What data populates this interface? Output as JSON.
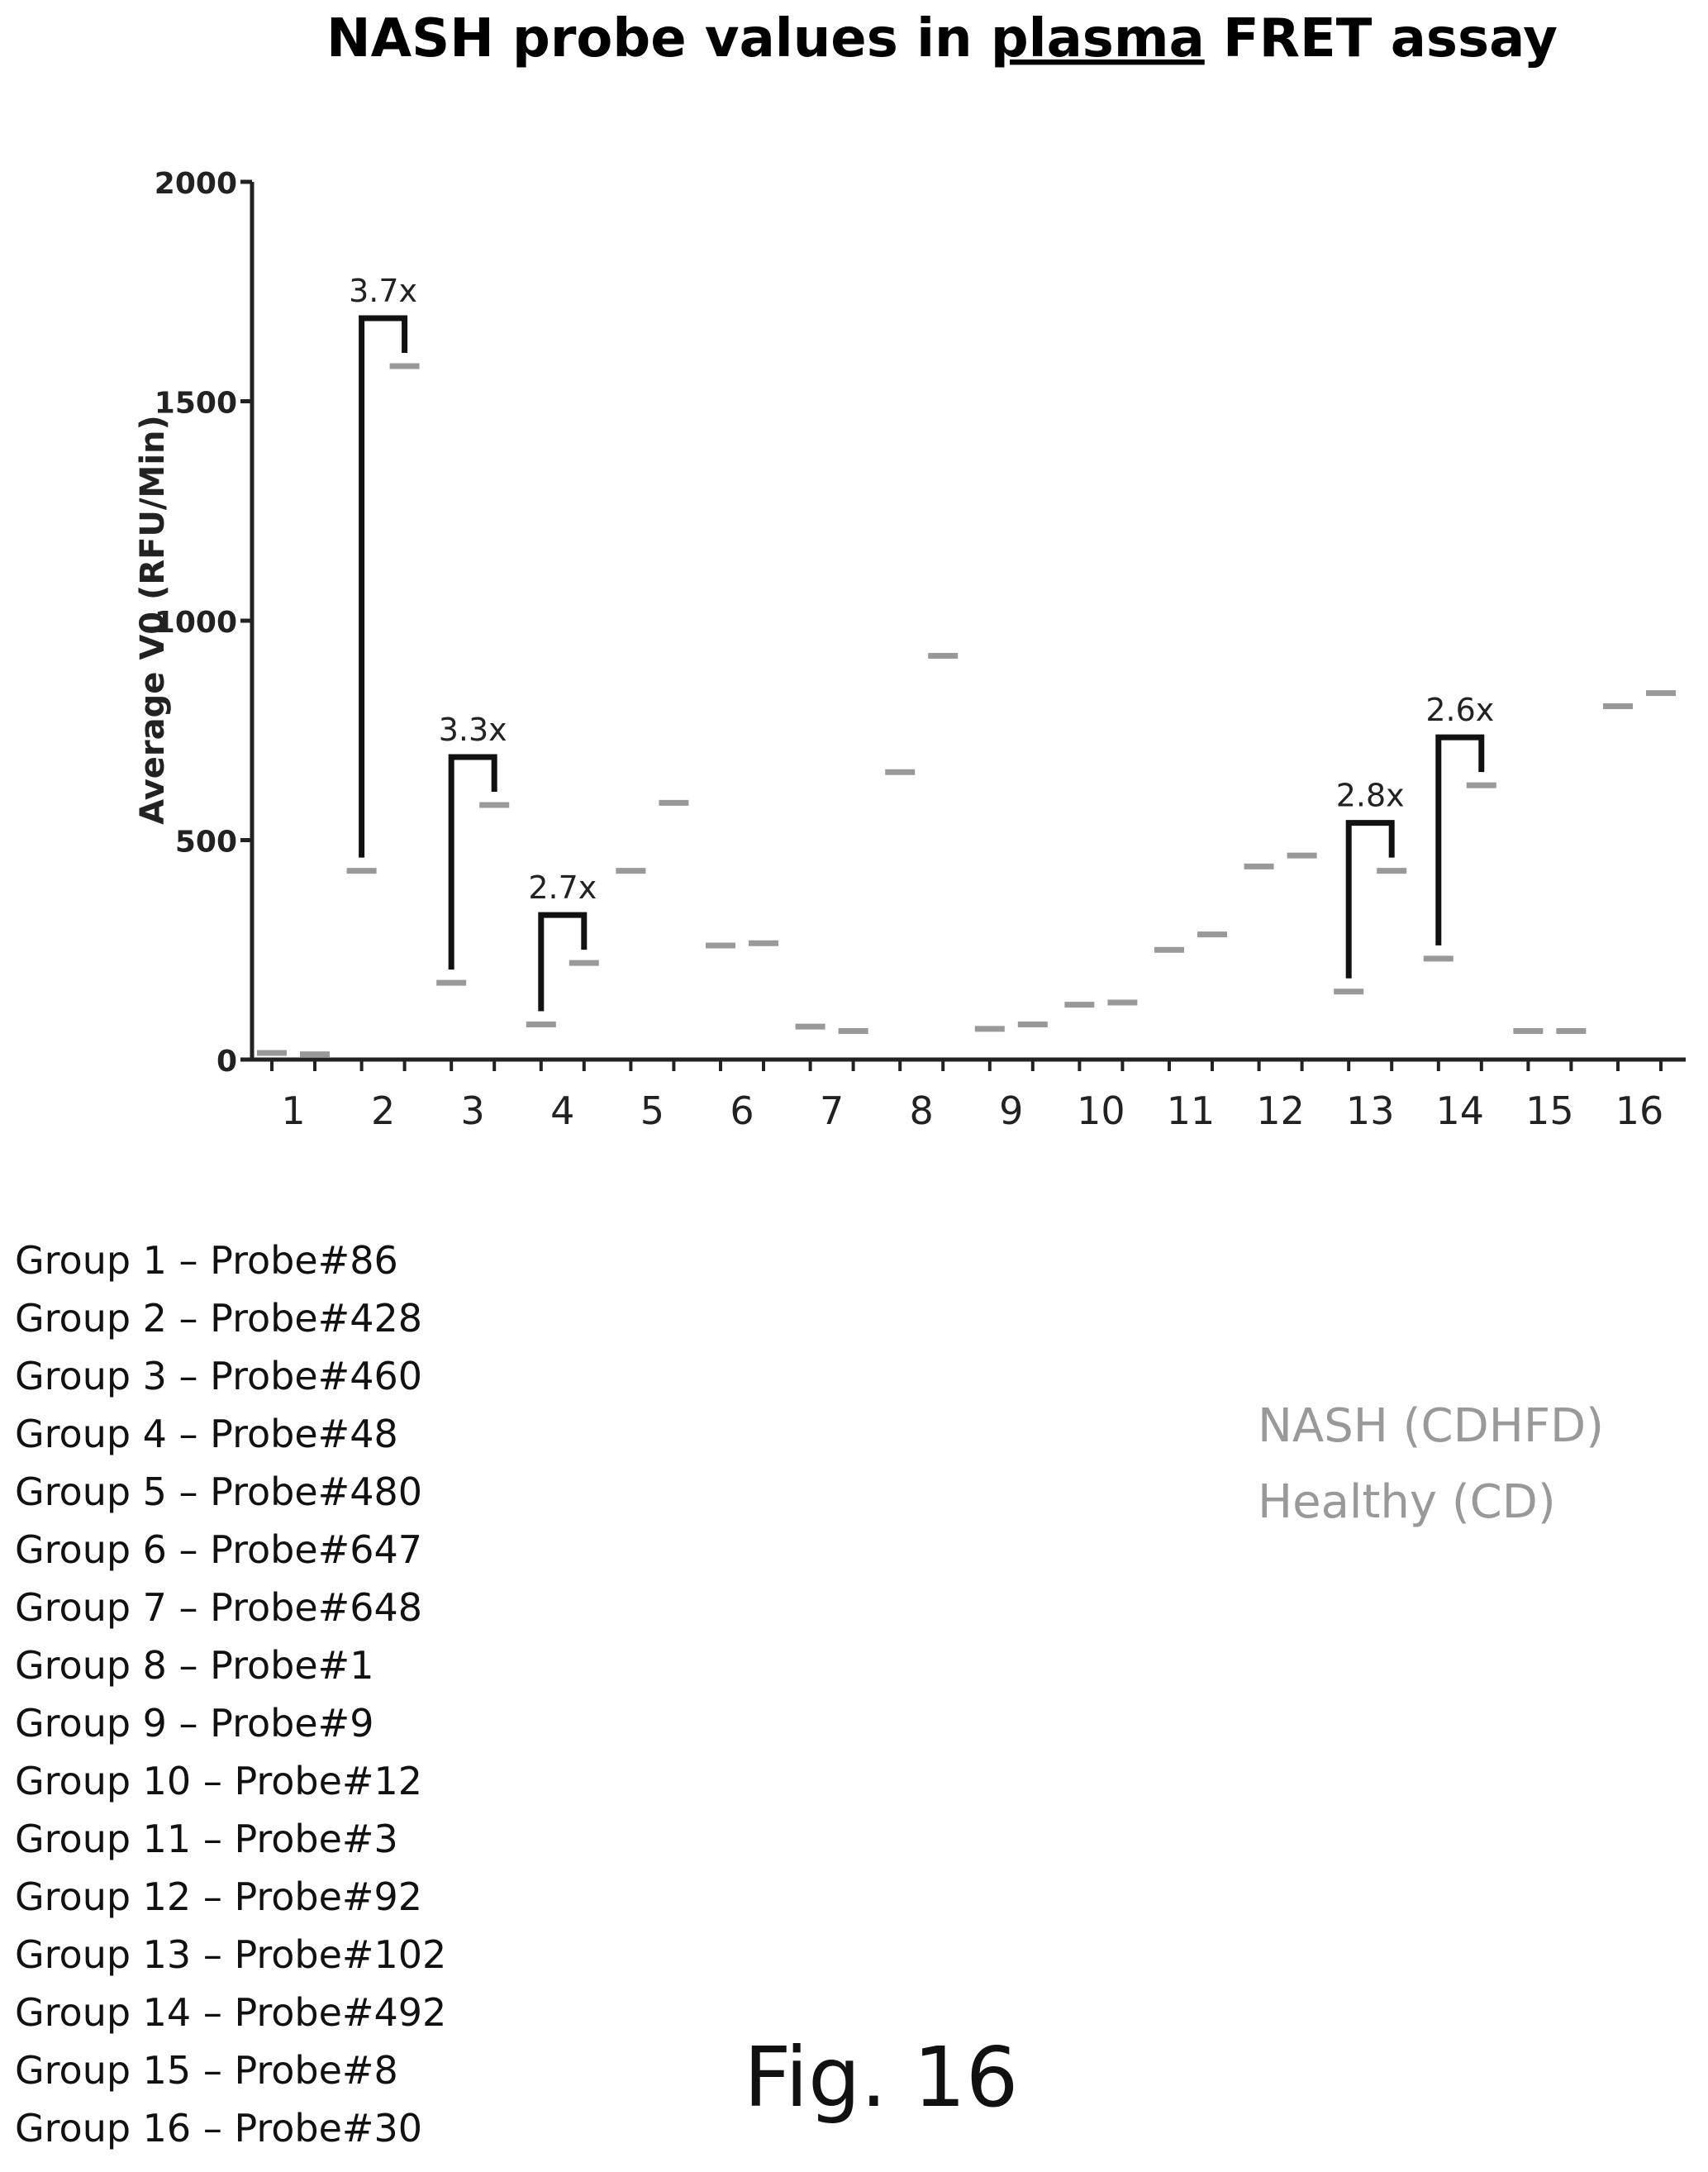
{
  "chart_data": {
    "type": "scatter",
    "title_parts": [
      "NASH probe values in ",
      "plasma",
      " FRET assay"
    ],
    "ylabel": "Average V0 (RFU/Min)",
    "xlabel": "",
    "ylim": [
      0,
      2000
    ],
    "yticks": [
      "0",
      "500",
      "1000",
      "1500",
      "2000"
    ],
    "categories": [
      "1",
      "2",
      "3",
      "4",
      "5",
      "6",
      "7",
      "8",
      "9",
      "10",
      "11",
      "12",
      "13",
      "14",
      "15",
      "16"
    ],
    "series": [
      {
        "name": "NASH (CDHFD)",
        "color": "#999999",
        "values": [
          15,
          430,
          175,
          80,
          430,
          260,
          75,
          655,
          70,
          125,
          250,
          440,
          155,
          230,
          65,
          805
        ]
      },
      {
        "name": "Healthy (CD)",
        "color": "#999999",
        "values": [
          12,
          1580,
          580,
          220,
          585,
          265,
          65,
          920,
          80,
          130,
          285,
          465,
          430,
          625,
          65,
          835
        ]
      }
    ],
    "annotations": [
      {
        "group": 2,
        "label": "3.7x"
      },
      {
        "group": 3,
        "label": "3.3x"
      },
      {
        "group": 4,
        "label": "2.7x"
      },
      {
        "group": 13,
        "label": "2.8x"
      },
      {
        "group": 14,
        "label": "2.6x"
      }
    ],
    "grid": false
  },
  "groups": [
    "Group 1 – Probe#86",
    "Group 2 – Probe#428",
    "Group 3 – Probe#460",
    "Group 4 – Probe#48",
    "Group 5 – Probe#480",
    "Group 6 – Probe#647",
    "Group 7 – Probe#648",
    "Group 8 – Probe#1",
    "Group 9 – Probe#9",
    "Group 10 – Probe#12",
    "Group 11 – Probe#3",
    "Group 12 – Probe#92",
    "Group 13 – Probe#102",
    "Group 14 – Probe#492",
    "Group 15 – Probe#8",
    "Group 16 – Probe#30"
  ],
  "legend": [
    "NASH (CDHFD)",
    "Healthy (CD)"
  ],
  "figure_label": "Fig. 16"
}
